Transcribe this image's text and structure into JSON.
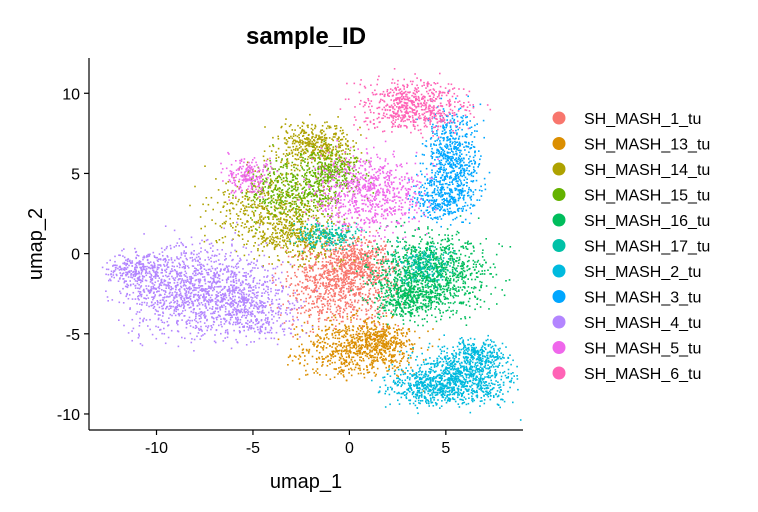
{
  "chart_data": {
    "type": "scatter",
    "title": "sample_ID",
    "xlabel": "umap_1",
    "ylabel": "umap_2",
    "xlim": [
      -13.5,
      9
    ],
    "ylim": [
      -11,
      12.2
    ],
    "xticks": [
      -10,
      -5,
      0,
      5
    ],
    "yticks": [
      -10,
      -5,
      0,
      5,
      10
    ],
    "grid": false,
    "legend_position": "right",
    "series": [
      {
        "name": "SH_MASH_1_tu",
        "color": "#F8766D",
        "clusters": [
          {
            "cx": -0.5,
            "cy": -1.8,
            "sx": 1.4,
            "sy": 1.3,
            "n": 900
          },
          {
            "cx": 0.5,
            "cy": -0.5,
            "sx": 0.9,
            "sy": 0.8,
            "n": 350
          }
        ]
      },
      {
        "name": "SH_MASH_13_tu",
        "color": "#DB8E00",
        "clusters": [
          {
            "cx": 0.3,
            "cy": -5.8,
            "sx": 1.5,
            "sy": 0.9,
            "n": 700
          },
          {
            "cx": 1.8,
            "cy": -5.3,
            "sx": 0.6,
            "sy": 0.6,
            "n": 200
          }
        ]
      },
      {
        "name": "SH_MASH_14_tu",
        "color": "#AEA200",
        "clusters": [
          {
            "cx": -1.8,
            "cy": 6.8,
            "sx": 1.0,
            "sy": 0.7,
            "n": 450
          },
          {
            "cx": -4.0,
            "cy": 2.8,
            "sx": 1.6,
            "sy": 1.2,
            "n": 550
          },
          {
            "cx": -2.5,
            "cy": 1.0,
            "sx": 1.2,
            "sy": 0.8,
            "n": 300
          }
        ]
      },
      {
        "name": "SH_MASH_15_tu",
        "color": "#64B200",
        "clusters": [
          {
            "cx": -2.8,
            "cy": 4.0,
            "sx": 1.3,
            "sy": 1.0,
            "n": 450
          },
          {
            "cx": -0.8,
            "cy": 5.2,
            "sx": 0.8,
            "sy": 0.7,
            "n": 250
          }
        ]
      },
      {
        "name": "SH_MASH_16_tu",
        "color": "#00BD5C",
        "clusters": [
          {
            "cx": 4.2,
            "cy": -1.2,
            "sx": 1.5,
            "sy": 1.2,
            "n": 1100
          },
          {
            "cx": 3.0,
            "cy": -2.8,
            "sx": 0.8,
            "sy": 0.6,
            "n": 300
          }
        ]
      },
      {
        "name": "SH_MASH_17_tu",
        "color": "#00C1A7",
        "clusters": [
          {
            "cx": -1.2,
            "cy": 1.2,
            "sx": 0.8,
            "sy": 0.4,
            "n": 200
          },
          {
            "cx": 3.8,
            "cy": -0.6,
            "sx": 0.8,
            "sy": 0.6,
            "n": 200
          }
        ]
      },
      {
        "name": "SH_MASH_2_tu",
        "color": "#00BADE",
        "clusters": [
          {
            "cx": 5.8,
            "cy": -7.6,
            "sx": 1.3,
            "sy": 0.9,
            "n": 850
          },
          {
            "cx": 3.8,
            "cy": -8.2,
            "sx": 1.0,
            "sy": 0.6,
            "n": 350
          },
          {
            "cx": 6.8,
            "cy": -6.2,
            "sx": 0.6,
            "sy": 0.5,
            "n": 200
          }
        ]
      },
      {
        "name": "SH_MASH_3_tu",
        "color": "#00A6FF",
        "clusters": [
          {
            "cx": 5.3,
            "cy": 5.8,
            "sx": 0.7,
            "sy": 1.6,
            "n": 700
          },
          {
            "cx": 4.6,
            "cy": 3.3,
            "sx": 0.7,
            "sy": 0.6,
            "n": 200
          }
        ]
      },
      {
        "name": "SH_MASH_4_tu",
        "color": "#B385FF",
        "clusters": [
          {
            "cx": -7.8,
            "cy": -2.2,
            "sx": 1.9,
            "sy": 1.4,
            "n": 1300
          },
          {
            "cx": -11.0,
            "cy": -1.0,
            "sx": 0.8,
            "sy": 0.5,
            "n": 250
          },
          {
            "cx": -5.0,
            "cy": -3.5,
            "sx": 1.2,
            "sy": 0.9,
            "n": 350
          }
        ]
      },
      {
        "name": "SH_MASH_5_tu",
        "color": "#EF67EB",
        "clusters": [
          {
            "cx": 1.0,
            "cy": 3.8,
            "sx": 1.4,
            "sy": 1.2,
            "n": 750
          },
          {
            "cx": -5.3,
            "cy": 4.9,
            "sx": 0.6,
            "sy": 0.6,
            "n": 200
          }
        ]
      },
      {
        "name": "SH_MASH_6_tu",
        "color": "#FF63B6",
        "clusters": [
          {
            "cx": 3.3,
            "cy": 9.3,
            "sx": 1.4,
            "sy": 0.8,
            "n": 650
          }
        ]
      }
    ]
  }
}
